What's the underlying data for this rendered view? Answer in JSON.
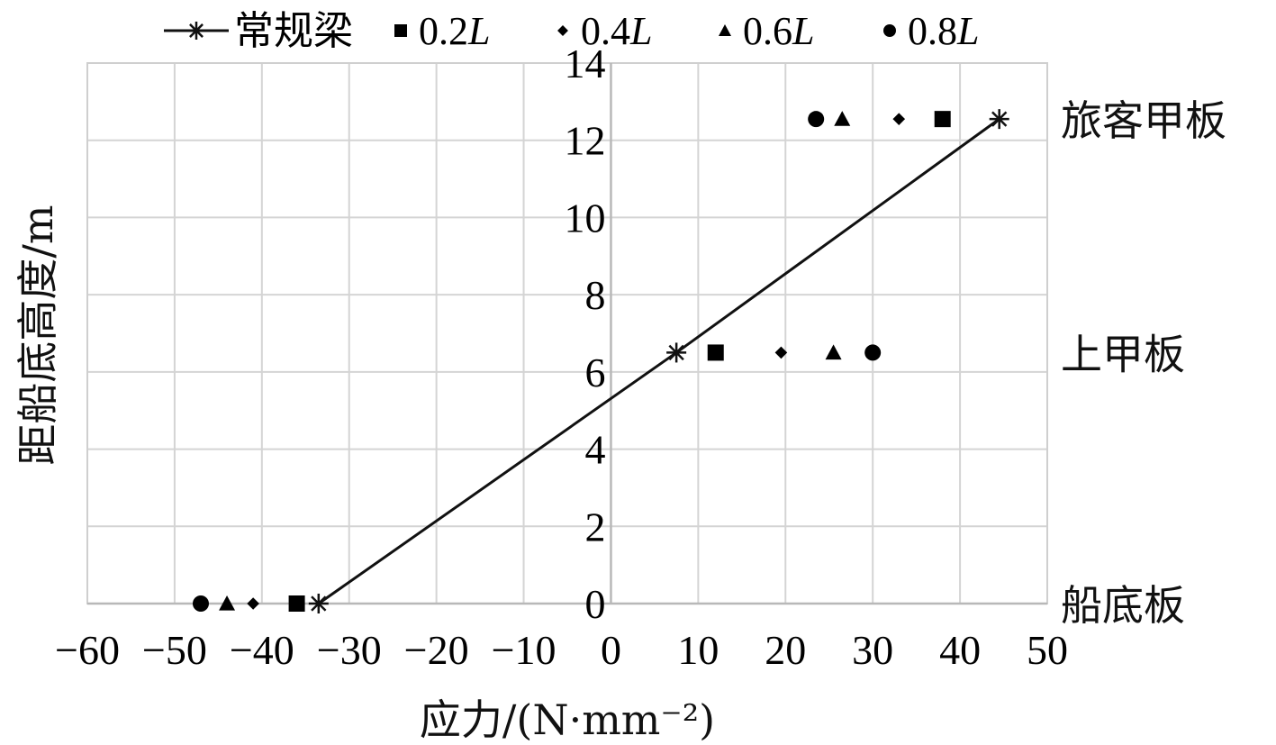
{
  "chart_data": {
    "type": "scatter",
    "xlabel": "应力/(N·mm⁻²)",
    "ylabel": "距船底高度/m",
    "xlim": [
      -60,
      50
    ],
    "ylim": [
      0,
      14
    ],
    "x_ticks": [
      -60,
      -50,
      -40,
      -30,
      -20,
      -10,
      0,
      10,
      20,
      30,
      40,
      50
    ],
    "y_ticks": [
      0,
      2,
      4,
      6,
      8,
      10,
      12,
      14
    ],
    "grid": true,
    "legend_position": "top",
    "series": [
      {
        "name": "常规梁",
        "marker": "star",
        "line": true,
        "points": [
          [
            -33.5,
            0
          ],
          [
            7.5,
            6.5
          ],
          [
            44.5,
            12.55
          ]
        ]
      },
      {
        "name": "0.2L",
        "marker": "square",
        "line": false,
        "points": [
          [
            -36,
            0
          ],
          [
            12,
            6.5
          ],
          [
            38,
            12.55
          ]
        ]
      },
      {
        "name": "0.4L",
        "marker": "diamond",
        "line": false,
        "points": [
          [
            -41,
            0
          ],
          [
            19.5,
            6.5
          ],
          [
            33,
            12.55
          ]
        ]
      },
      {
        "name": "0.6L",
        "marker": "triangle",
        "line": false,
        "points": [
          [
            -44,
            0
          ],
          [
            25.5,
            6.5
          ],
          [
            26.5,
            12.55
          ]
        ]
      },
      {
        "name": "0.8L",
        "marker": "circle",
        "line": false,
        "points": [
          [
            -47,
            0
          ],
          [
            30,
            6.5
          ],
          [
            23.5,
            12.55
          ]
        ]
      }
    ],
    "level_labels": [
      {
        "text": "旅客甲板",
        "y": 12.55
      },
      {
        "text": "上甲板",
        "y": 6.5
      },
      {
        "text": "船底板",
        "y": 0
      }
    ]
  }
}
